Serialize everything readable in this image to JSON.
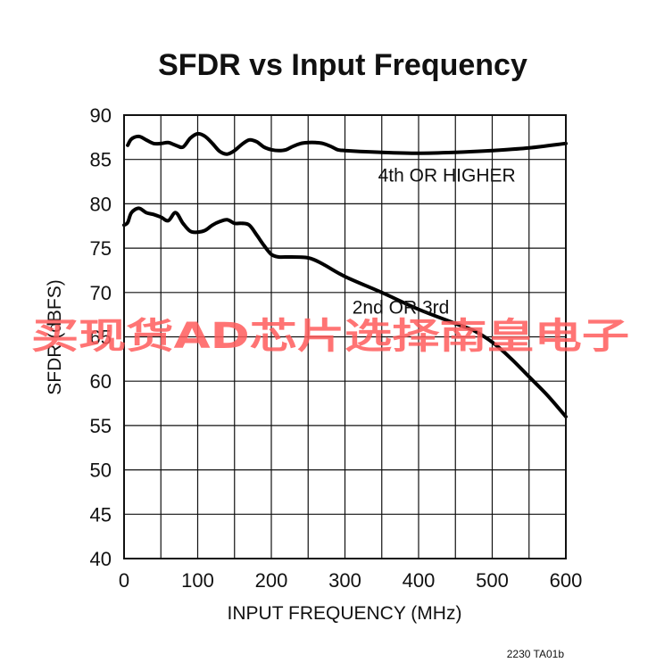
{
  "chart_data": {
    "type": "line",
    "title": "SFDR vs Input Frequency",
    "xlabel": "INPUT FREQUENCY (MHz)",
    "ylabel": "SFDR (dBFS)",
    "xlim": [
      0,
      600
    ],
    "ylim": [
      40,
      90
    ],
    "x_ticks": [
      0,
      100,
      200,
      300,
      400,
      500,
      600
    ],
    "y_ticks": [
      40,
      45,
      50,
      55,
      60,
      65,
      70,
      75,
      80,
      85,
      90
    ],
    "grid": true,
    "legend": "none",
    "series": [
      {
        "name": "4th OR HIGHER",
        "points": [
          [
            5,
            86.6
          ],
          [
            10,
            87.3
          ],
          [
            20,
            87.6
          ],
          [
            30,
            87.2
          ],
          [
            40,
            86.8
          ],
          [
            50,
            86.8
          ],
          [
            60,
            86.9
          ],
          [
            70,
            86.6
          ],
          [
            80,
            86.4
          ],
          [
            90,
            87.4
          ],
          [
            100,
            87.9
          ],
          [
            110,
            87.6
          ],
          [
            120,
            86.8
          ],
          [
            130,
            85.9
          ],
          [
            140,
            85.6
          ],
          [
            150,
            86.0
          ],
          [
            160,
            86.7
          ],
          [
            170,
            87.2
          ],
          [
            180,
            87.0
          ],
          [
            190,
            86.4
          ],
          [
            200,
            86.1
          ],
          [
            210,
            86.0
          ],
          [
            220,
            86.1
          ],
          [
            230,
            86.5
          ],
          [
            240,
            86.8
          ],
          [
            250,
            86.9
          ],
          [
            260,
            86.9
          ],
          [
            270,
            86.8
          ],
          [
            280,
            86.5
          ],
          [
            290,
            86.1
          ],
          [
            300,
            86.0
          ],
          [
            320,
            85.9
          ],
          [
            350,
            85.8
          ],
          [
            400,
            85.7
          ],
          [
            450,
            85.8
          ],
          [
            500,
            86.0
          ],
          [
            550,
            86.3
          ],
          [
            600,
            86.8
          ]
        ]
      },
      {
        "name": "2nd OR 3rd",
        "points": [
          [
            0,
            77.6
          ],
          [
            5,
            77.9
          ],
          [
            10,
            79.0
          ],
          [
            20,
            79.5
          ],
          [
            30,
            79.0
          ],
          [
            40,
            78.8
          ],
          [
            50,
            78.5
          ],
          [
            60,
            78.1
          ],
          [
            70,
            79.0
          ],
          [
            80,
            77.8
          ],
          [
            90,
            76.9
          ],
          [
            100,
            76.8
          ],
          [
            110,
            77.0
          ],
          [
            120,
            77.6
          ],
          [
            130,
            78.0
          ],
          [
            140,
            78.2
          ],
          [
            150,
            77.8
          ],
          [
            160,
            77.8
          ],
          [
            170,
            77.6
          ],
          [
            180,
            76.5
          ],
          [
            190,
            75.3
          ],
          [
            200,
            74.3
          ],
          [
            210,
            74.0
          ],
          [
            220,
            74.0
          ],
          [
            250,
            73.9
          ],
          [
            270,
            73.2
          ],
          [
            300,
            71.8
          ],
          [
            350,
            70.0
          ],
          [
            400,
            68.1
          ],
          [
            450,
            66.5
          ],
          [
            475,
            65.7
          ],
          [
            500,
            64.4
          ],
          [
            525,
            62.6
          ],
          [
            550,
            60.5
          ],
          [
            575,
            58.4
          ],
          [
            600,
            56.0
          ]
        ]
      }
    ],
    "annotations": [
      {
        "text": "4th OR HIGHER",
        "x": 345,
        "y": 82.5
      },
      {
        "text": "2nd OR 3rd",
        "x": 310,
        "y": 67.6
      }
    ]
  },
  "watermark": "买现货AD芯片选择南皇电子",
  "figure_id": "2230 TA01b"
}
